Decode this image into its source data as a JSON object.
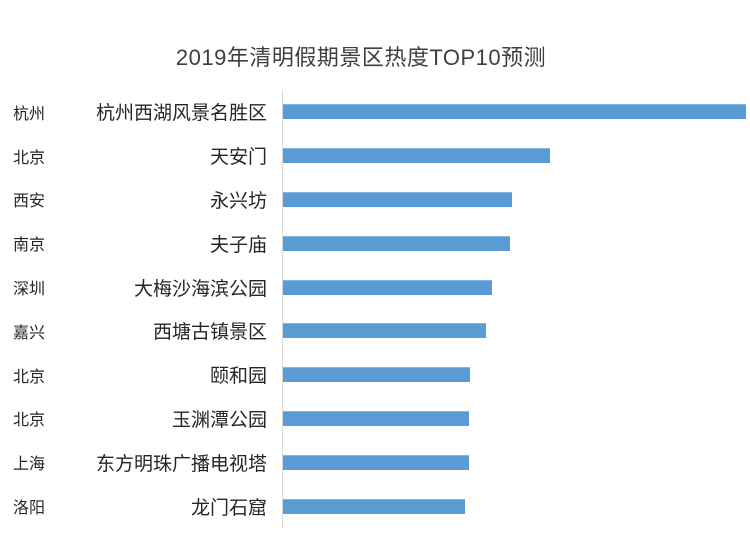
{
  "title": "2019年清明假期景区热度TOP10预测",
  "colors": {
    "bar_fill": "#5B9BD5",
    "axis_line": "#D9D9D9",
    "title_text": "#3F3F3F",
    "label_text": "#262626",
    "background": "#FFFFFF"
  },
  "chart_data": {
    "type": "bar",
    "orientation": "horizontal",
    "title": "2019年清明假期景区热度TOP10预测",
    "xlabel": "",
    "ylabel": "",
    "value_axis_visible": false,
    "gridlines": false,
    "legend": false,
    "value_scale_note": "no numeric axis shown; values are relative heat estimated from bar lengths, max bar = 100",
    "max_relative_value": 100,
    "categories": [
      "杭州",
      "北京",
      "西安",
      "南京",
      "深圳",
      "嘉兴",
      "北京",
      "北京",
      "上海",
      "洛阳"
    ],
    "rows": [
      {
        "city": "杭州",
        "venue": "杭州西湖风景名胜区",
        "relative_heat": 100
      },
      {
        "city": "北京",
        "venue": "天安门",
        "relative_heat": 57.7
      },
      {
        "city": "西安",
        "venue": "永兴坊",
        "relative_heat": 49.5
      },
      {
        "city": "南京",
        "venue": "夫子庙",
        "relative_heat": 49.0
      },
      {
        "city": "深圳",
        "venue": "大梅沙海滨公园",
        "relative_heat": 45.1
      },
      {
        "city": "嘉兴",
        "venue": "西塘古镇景区",
        "relative_heat": 43.8
      },
      {
        "city": "北京",
        "venue": "颐和园",
        "relative_heat": 40.4
      },
      {
        "city": "北京",
        "venue": "玉渊潭公园",
        "relative_heat": 40.2
      },
      {
        "city": "上海",
        "venue": "东方明珠广播电视塔",
        "relative_heat": 40.2
      },
      {
        "city": "洛阳",
        "venue": "龙门石窟",
        "relative_heat": 39.3
      }
    ]
  }
}
